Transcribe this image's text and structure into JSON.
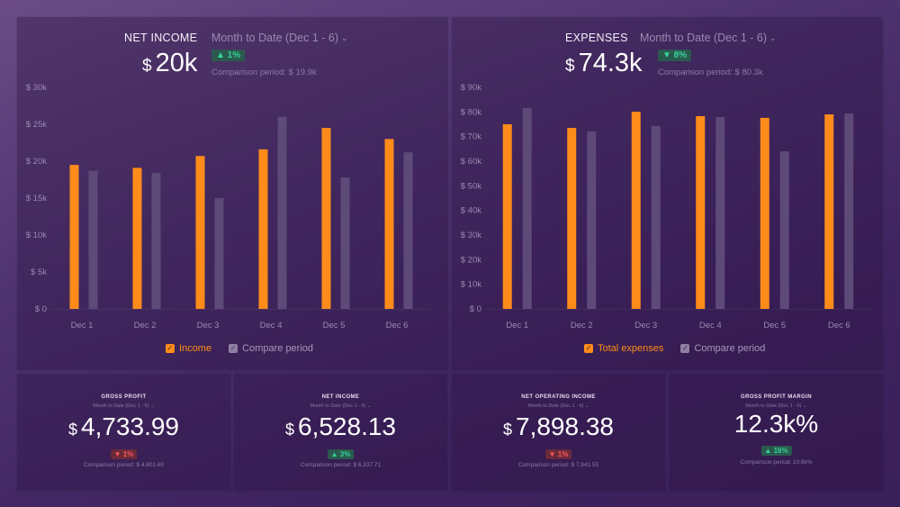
{
  "colors": {
    "primary_bar": "#ff8c1a",
    "compare_bar": "#5e4a78",
    "positive": "#37d39a",
    "negative": "#ff5a5a"
  },
  "panels": {
    "net_income": {
      "title": "NET INCOME",
      "period": "Month to Date (Dec 1 - 6)",
      "currency": "$",
      "value": "20k",
      "badge": "▲ 1%",
      "comparison": "Comparison period: $ 19.9k",
      "legend": [
        "Income",
        "Compare period"
      ]
    },
    "expenses": {
      "title": "EXPENSES",
      "period": "Month to Date (Dec 1 - 6)",
      "currency": "$",
      "value": "74.3k",
      "badge": "▼ 8%",
      "comparison": "Comparison period: $ 80.3k",
      "legend": [
        "Total expenses",
        "Compare period"
      ]
    }
  },
  "chart_data": [
    {
      "type": "bar",
      "title": "NET INCOME",
      "categories": [
        "Dec 1",
        "Dec 2",
        "Dec 3",
        "Dec 4",
        "Dec 5",
        "Dec 6"
      ],
      "series": [
        {
          "name": "Income",
          "values": [
            19.5,
            19.1,
            20.7,
            21.6,
            24.5,
            23.0
          ]
        },
        {
          "name": "Compare period",
          "values": [
            18.7,
            18.4,
            15.0,
            26.0,
            17.8,
            21.2
          ]
        }
      ],
      "yticks": [
        "$ 0",
        "$ 5k",
        "$ 10k",
        "$ 15k",
        "$ 20k",
        "$ 25k",
        "$ 30k"
      ],
      "ylim": [
        0,
        30
      ],
      "yunit": "k USD",
      "legend": "bottom",
      "grid": false
    },
    {
      "type": "bar",
      "title": "EXPENSES",
      "categories": [
        "Dec 1",
        "Dec 2",
        "Dec 3",
        "Dec 4",
        "Dec 5",
        "Dec 6"
      ],
      "series": [
        {
          "name": "Total expenses",
          "values": [
            75.0,
            73.5,
            80.1,
            78.3,
            77.6,
            79.0
          ]
        },
        {
          "name": "Compare period",
          "values": [
            81.6,
            72.1,
            74.3,
            77.9,
            64.0,
            79.4
          ]
        }
      ],
      "yticks": [
        "$ 0",
        "$ 10k",
        "$ 20k",
        "$ 30k",
        "$ 40k",
        "$ 50k",
        "$ 60k",
        "$ 70k",
        "$ 80k",
        "$ 90k"
      ],
      "ylim": [
        0,
        90
      ],
      "yunit": "k USD",
      "legend": "bottom",
      "grid": false
    }
  ],
  "kpis": [
    {
      "title": "GROSS PROFIT",
      "period": "Month to Date (Dec 1 - 6)",
      "currency": "$",
      "value": "4,733.99",
      "badge": "▼ 1%",
      "direction": "down",
      "comparison": "Comparison period: $ 4,801.60"
    },
    {
      "title": "NET INCOME",
      "period": "Month to Date (Dec 1 - 6)",
      "currency": "$",
      "value": "6,528.13",
      "badge": "▲ 3%",
      "direction": "up",
      "comparison": "Comparison period: $ 6,337.71"
    },
    {
      "title": "NET OPERATING INCOME",
      "period": "Month to Date (Dec 1 - 6)",
      "currency": "$",
      "value": "7,898.38",
      "badge": "▼ 1%",
      "direction": "down",
      "comparison": "Comparison period: $ 7,941.55"
    },
    {
      "title": "GROSS PROFIT MARGIN",
      "period": "Month to Date (Dec 1 - 6)",
      "currency": "",
      "value": "12.3k%",
      "badge": "▲ 16%",
      "direction": "up",
      "comparison": "Comparison period: 10.6k%"
    }
  ]
}
